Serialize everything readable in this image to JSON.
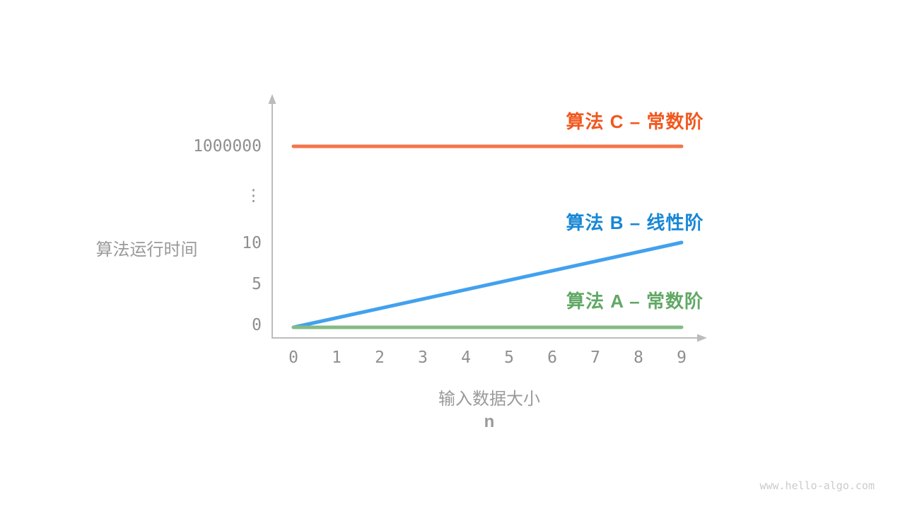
{
  "chart_data": {
    "type": "line",
    "y_label": "算法运行时间",
    "x_label": "输入数据大小",
    "x_symbol": "n",
    "x_ticks": [
      "0",
      "1",
      "2",
      "3",
      "4",
      "5",
      "6",
      "7",
      "8",
      "9"
    ],
    "y_ticks": [
      {
        "label": "0",
        "value": 0
      },
      {
        "label": "5",
        "value": 5
      },
      {
        "label": "10",
        "value": 10
      },
      {
        "label": "⋮",
        "value": null
      },
      {
        "label": "1000000",
        "value": 1000000
      }
    ],
    "y_axis_break": true,
    "x_range": [
      0,
      9
    ],
    "grid": false,
    "legend_position": "right-of-each-line",
    "series": [
      {
        "id": "C",
        "label": "算法 C – 常数阶",
        "line_color": "#F3764B",
        "label_color": "#F1571E",
        "x": [
          0,
          9
        ],
        "values": [
          1000000,
          1000000
        ]
      },
      {
        "id": "B",
        "label": "算法 B – 线性阶",
        "line_color": "#42A1EE",
        "label_color": "#1787D6",
        "x": [
          0,
          9
        ],
        "values": [
          0,
          10
        ]
      },
      {
        "id": "A",
        "label": "算法 A – 常数阶",
        "line_color": "#85BB85",
        "label_color": "#61A865",
        "x": [
          0,
          9
        ],
        "values": [
          0,
          0
        ]
      }
    ],
    "watermark": "www.hello-algo.com"
  }
}
